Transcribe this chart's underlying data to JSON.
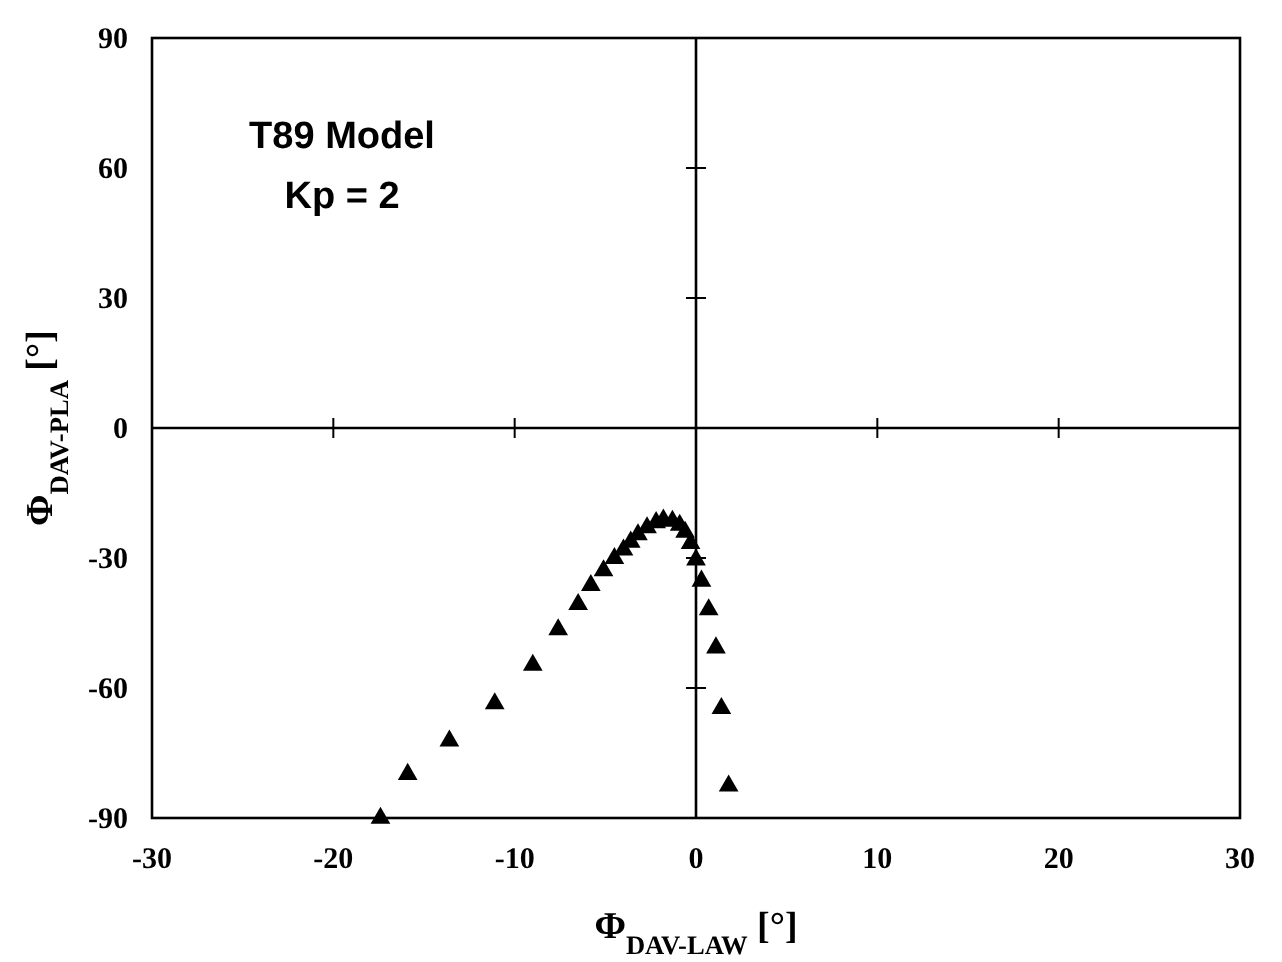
{
  "chart_data": {
    "type": "scatter",
    "xlabel": "Φ$_{DAV-LAW}$ [°]",
    "ylabel": "Φ$_{DAV-PLA}$ [°]",
    "annotations": [
      "T89 Model",
      "Kp = 2"
    ],
    "xlim": [
      -30,
      30
    ],
    "xticks": [
      -30,
      -20,
      -10,
      0,
      10,
      20,
      30
    ],
    "ylim": [
      -90,
      90
    ],
    "yticks": [
      -90,
      -60,
      -30,
      0,
      30,
      60,
      90
    ],
    "marker": "triangle",
    "series": [
      {
        "color": "#000000",
        "x": [
          -17.4,
          -15.9,
          -13.6,
          -11.1,
          -9.0,
          -7.6,
          -6.5,
          -5.8,
          -5.1,
          -4.5,
          -4.0,
          -3.6,
          -3.2,
          -2.7,
          -2.2,
          -1.8,
          -1.3,
          -0.9,
          -0.6,
          -0.3,
          0.0,
          0.3,
          0.7,
          1.1,
          1.4,
          1.8
        ],
        "values": [
          -90,
          -79.9,
          -72.2,
          -63.6,
          -54.7,
          -46.5,
          -40.7,
          -36.3,
          -32.9,
          -30.1,
          -28.1,
          -26.3,
          -24.6,
          -23.0,
          -21.8,
          -21.2,
          -21.5,
          -22.4,
          -24.0,
          -26.6,
          -30.4,
          -35.3,
          -41.9,
          -50.7,
          -64.7,
          -82.6
        ]
      }
    ]
  }
}
